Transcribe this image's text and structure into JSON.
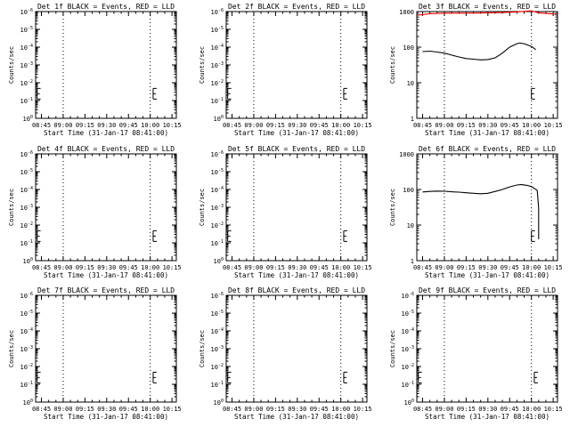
{
  "chart_data": [
    {
      "title": "Det 1f BLACK = Events, RED = LLD",
      "xlabel": "Start Time (31-Jan-17 08:41:00)",
      "ylabel": "Counts/sec",
      "type": "line",
      "yscale": "log",
      "ylim": [
        1,
        1e-06
      ],
      "xlim": [
        "08:41",
        "10:18"
      ],
      "xticks": [
        "08:45",
        "09:00",
        "09:15",
        "09:30",
        "09:45",
        "10:00",
        "10:15"
      ],
      "yticks": [
        "10^0",
        "10^-1",
        "10^-2",
        "10^-3",
        "10^-4",
        "10^-5",
        "10^-6"
      ],
      "vlines": [
        "09:00",
        "10:00"
      ],
      "ebars": [
        "08:42",
        "10:02"
      ],
      "series": []
    },
    {
      "title": "Det 2f BLACK = Events, RED = LLD",
      "xlabel": "Start Time (31-Jan-17 08:41:00)",
      "ylabel": "Counts/sec",
      "type": "line",
      "yscale": "log",
      "ylim": [
        1,
        1e-06
      ],
      "xlim": [
        "08:41",
        "10:18"
      ],
      "xticks": [
        "08:45",
        "09:00",
        "09:15",
        "09:30",
        "09:45",
        "10:00",
        "10:15"
      ],
      "yticks": [
        "10^0",
        "10^-1",
        "10^-2",
        "10^-3",
        "10^-4",
        "10^-5",
        "10^-6"
      ],
      "vlines": [
        "09:00",
        "10:00"
      ],
      "ebars": [
        "08:42",
        "10:02"
      ],
      "series": []
    },
    {
      "title": "Det 3f BLACK = Events, RED = LLD",
      "xlabel": "Start Time (31-Jan-17 08:41:00)",
      "ylabel": "Counts/sec",
      "type": "line",
      "yscale": "log",
      "ylim": [
        1,
        1000
      ],
      "xlim": [
        "08:41",
        "10:18"
      ],
      "xticks": [
        "08:45",
        "09:00",
        "09:15",
        "09:30",
        "09:45",
        "10:00",
        "10:15"
      ],
      "yticks": [
        "1",
        "10",
        "100",
        "1000"
      ],
      "vlines": [
        "09:00",
        "10:00"
      ],
      "ebars": [
        "10:00"
      ],
      "series": [
        {
          "color": "#000000",
          "points": [
            [
              "08:45",
              75
            ],
            [
              "08:50",
              77
            ],
            [
              "08:55",
              73
            ],
            [
              "09:00",
              68
            ],
            [
              "09:05",
              60
            ],
            [
              "09:10",
              53
            ],
            [
              "09:15",
              48
            ],
            [
              "09:20",
              46
            ],
            [
              "09:25",
              44
            ],
            [
              "09:30",
              45
            ],
            [
              "09:35",
              50
            ],
            [
              "09:40",
              68
            ],
            [
              "09:45",
              100
            ],
            [
              "09:50",
              125
            ],
            [
              "09:52",
              130
            ],
            [
              "09:55",
              125
            ],
            [
              "10:00",
              105
            ],
            [
              "10:03",
              85
            ]
          ]
        },
        {
          "color": "#ff0000",
          "points": [
            [
              "08:42",
              800
            ],
            [
              "08:50",
              870
            ],
            [
              "09:00",
              900
            ],
            [
              "09:15",
              900
            ],
            [
              "09:30",
              920
            ],
            [
              "09:40",
              940
            ],
            [
              "09:50",
              980
            ],
            [
              "10:00",
              1050
            ],
            [
              "10:05",
              920
            ],
            [
              "10:10",
              880
            ],
            [
              "10:17",
              850
            ]
          ]
        }
      ]
    },
    {
      "title": "Det 4f BLACK = Events, RED = LLD",
      "xlabel": "Start Time (31-Jan-17 08:41:00)",
      "ylabel": "Counts/sec",
      "type": "line",
      "yscale": "log",
      "ylim": [
        1,
        1e-06
      ],
      "xlim": [
        "08:41",
        "10:18"
      ],
      "xticks": [
        "08:45",
        "09:00",
        "09:15",
        "09:30",
        "09:45",
        "10:00",
        "10:15"
      ],
      "yticks": [
        "10^0",
        "10^-1",
        "10^-2",
        "10^-3",
        "10^-4",
        "10^-5",
        "10^-6"
      ],
      "vlines": [
        "09:00",
        "10:00"
      ],
      "ebars": [
        "08:42",
        "10:02"
      ],
      "series": []
    },
    {
      "title": "Det 5f BLACK = Events, RED = LLD",
      "xlabel": "Start Time (31-Jan-17 08:41:00)",
      "ylabel": "Counts/sec",
      "type": "line",
      "yscale": "log",
      "ylim": [
        1,
        1e-06
      ],
      "xlim": [
        "08:41",
        "10:18"
      ],
      "xticks": [
        "08:45",
        "09:00",
        "09:15",
        "09:30",
        "09:45",
        "10:00",
        "10:15"
      ],
      "yticks": [
        "10^0",
        "10^-1",
        "10^-2",
        "10^-3",
        "10^-4",
        "10^-5",
        "10^-6"
      ],
      "vlines": [
        "09:00",
        "10:00"
      ],
      "ebars": [
        "08:42",
        "10:02"
      ],
      "series": []
    },
    {
      "title": "Det 6f BLACK = Events, RED = LLD",
      "xlabel": "Start Time (31-Jan-17 08:41:00)",
      "ylabel": "Counts/sec",
      "type": "line",
      "yscale": "log",
      "ylim": [
        1,
        1000
      ],
      "xlim": [
        "08:41",
        "10:18"
      ],
      "xticks": [
        "08:45",
        "09:00",
        "09:15",
        "09:30",
        "09:45",
        "10:00",
        "10:15"
      ],
      "yticks": [
        "1",
        "10",
        "100",
        "1000"
      ],
      "vlines": [
        "09:00",
        "10:00"
      ],
      "ebars": [
        "10:00"
      ],
      "series": [
        {
          "color": "#000000",
          "points": [
            [
              "08:45",
              85
            ],
            [
              "08:50",
              88
            ],
            [
              "08:55",
              90
            ],
            [
              "09:00",
              89
            ],
            [
              "09:05",
              86
            ],
            [
              "09:10",
              84
            ],
            [
              "09:15",
              81
            ],
            [
              "09:20",
              78
            ],
            [
              "09:25",
              76
            ],
            [
              "09:30",
              78
            ],
            [
              "09:35",
              88
            ],
            [
              "09:40",
              100
            ],
            [
              "09:45",
              118
            ],
            [
              "09:50",
              133
            ],
            [
              "09:53",
              138
            ],
            [
              "09:57",
              130
            ],
            [
              "10:00",
              120
            ],
            [
              "10:04",
              95
            ],
            [
              "10:05",
              30
            ],
            [
              "10:05",
              4
            ]
          ]
        }
      ]
    },
    {
      "title": "Det 7f BLACK = Events, RED = LLD",
      "xlabel": "Start Time (31-Jan-17 08:41:00)",
      "ylabel": "Counts/sec",
      "type": "line",
      "yscale": "log",
      "ylim": [
        1,
        1e-06
      ],
      "xlim": [
        "08:41",
        "10:18"
      ],
      "xticks": [
        "08:45",
        "09:00",
        "09:15",
        "09:30",
        "09:45",
        "10:00",
        "10:15"
      ],
      "yticks": [
        "10^0",
        "10^-1",
        "10^-2",
        "10^-3",
        "10^-4",
        "10^-5",
        "10^-6"
      ],
      "vlines": [
        "09:00",
        "10:00"
      ],
      "ebars": [
        "08:42",
        "10:02"
      ],
      "series": []
    },
    {
      "title": "Det 8f BLACK = Events, RED = LLD",
      "xlabel": "Start Time (31-Jan-17 08:41:00)",
      "ylabel": "Counts/sec",
      "type": "line",
      "yscale": "log",
      "ylim": [
        1,
        1e-06
      ],
      "xlim": [
        "08:41",
        "10:18"
      ],
      "xticks": [
        "08:45",
        "09:00",
        "09:15",
        "09:30",
        "09:45",
        "10:00",
        "10:15"
      ],
      "yticks": [
        "10^0",
        "10^-1",
        "10^-2",
        "10^-3",
        "10^-4",
        "10^-5",
        "10^-6"
      ],
      "vlines": [
        "09:00",
        "10:00"
      ],
      "ebars": [
        "08:42",
        "10:02"
      ],
      "series": []
    },
    {
      "title": "Det 9f BLACK = Events, RED = LLD",
      "xlabel": "Start Time (31-Jan-17 08:41:00)",
      "ylabel": "Counts/sec",
      "type": "line",
      "yscale": "log",
      "ylim": [
        1,
        1e-06
      ],
      "xlim": [
        "08:41",
        "10:18"
      ],
      "xticks": [
        "08:45",
        "09:00",
        "09:15",
        "09:30",
        "09:45",
        "10:00",
        "10:15"
      ],
      "yticks": [
        "10^0",
        "10^-1",
        "10^-2",
        "10^-3",
        "10^-4",
        "10^-5",
        "10^-6"
      ],
      "vlines": [
        "09:00",
        "10:00"
      ],
      "ebars": [
        "08:42",
        "10:02"
      ],
      "series": []
    }
  ]
}
